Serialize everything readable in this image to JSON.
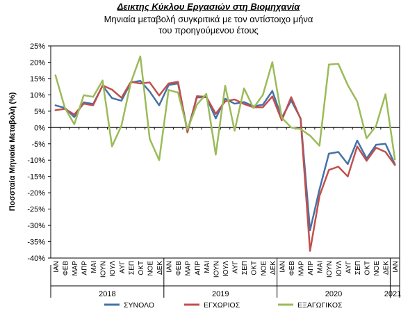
{
  "chart_data": {
    "type": "line",
    "title": "Δεικτης Κύκλου Εργασιών στη Βιομηχανία",
    "subtitle_line1": "Μηνιαία μεταβολή συγκριτικά με τον αντίστοιχο μήνα",
    "subtitle_line2": "του προηγούμενου έτους",
    "ylabel": "Ποσσταία Μηνιαία Μεταβολή (%)",
    "xlabel": "",
    "ylim": [
      -40,
      25
    ],
    "y_ticks": [
      "25%",
      "20%",
      "15%",
      "10%",
      "5%",
      "0%",
      "-5%",
      "-10%",
      "-15%",
      "-20%",
      "-25%",
      "-30%",
      "-35%",
      "-40%"
    ],
    "grid": false,
    "legend_position": "bottom",
    "x": [
      "ΙΑΝ",
      "ΦΕΒ",
      "ΜΑΡ",
      "ΑΠΡ",
      "ΜΑΙ",
      "ΙΟΥΝ",
      "ΙΟΥΛ",
      "ΑΥΓ",
      "ΣΕΠ",
      "ΟΚΤ",
      "ΝΟΕ",
      "ΔΕΚ",
      "ΙΑΝ",
      "ΦΕΒ",
      "ΜΑΡ",
      "ΑΠΡ",
      "ΜΑΙ",
      "ΙΟΥΝ",
      "ΙΟΥΛ",
      "ΑΥΓ",
      "ΣΕΠ",
      "ΟΚΤ",
      "ΝΟΕ",
      "ΔΕΚ",
      "ΙΑΝ",
      "ΦΕΒ",
      "ΜΑΡ",
      "ΑΠΡ",
      "ΜΑΙ",
      "ΙΟΥΝ",
      "ΙΟΥΛ",
      "ΑΥΓ",
      "ΣΕΠ",
      "ΟΚΤ",
      "ΝΟΕ",
      "ΔΕΚ",
      "ΙΑΝ"
    ],
    "year_groups": [
      {
        "label": "2018",
        "start": 0,
        "end": 11
      },
      {
        "label": "2019",
        "start": 12,
        "end": 23
      },
      {
        "label": "2020",
        "start": 24,
        "end": 35
      },
      {
        "label": "2021",
        "start": 36,
        "end": 36
      }
    ],
    "series": [
      {
        "name": "ΣΥΝΟΛΟ",
        "color": "#4472a8",
        "values": [
          6.8,
          6.0,
          3.2,
          7.7,
          7.2,
          12.8,
          9.0,
          8.2,
          13.8,
          14.3,
          11.0,
          6.8,
          13.0,
          13.5,
          -1.0,
          9.2,
          9.3,
          2.8,
          8.8,
          7.3,
          7.8,
          6.5,
          7.0,
          11.2,
          3.0,
          8.3,
          2.8,
          -31.5,
          -19.0,
          -8.0,
          -7.5,
          -11.2,
          -4.0,
          -9.5,
          -5.3,
          -5.0,
          -11.3
        ]
      },
      {
        "name": "ΕΓΧΩΡΙΟΣ",
        "color": "#c0504d",
        "values": [
          5.3,
          5.7,
          4.0,
          7.3,
          6.8,
          12.9,
          11.6,
          9.1,
          14.0,
          13.5,
          13.8,
          9.8,
          13.5,
          14.0,
          -1.5,
          9.6,
          9.4,
          4.2,
          8.0,
          8.6,
          7.2,
          6.2,
          6.2,
          9.5,
          2.2,
          9.3,
          2.6,
          -37.8,
          -21.0,
          -13.0,
          -12.0,
          -15.0,
          -5.8,
          -10.2,
          -6.2,
          -7.5,
          -11.5
        ]
      },
      {
        "name": "ΕΞΑΓΩΓΙΚΟΣ",
        "color": "#9bbb59",
        "values": [
          16.0,
          6.0,
          1.0,
          9.9,
          9.4,
          14.4,
          -5.8,
          0.6,
          13.8,
          21.8,
          -3.5,
          -10.0,
          11.5,
          10.7,
          -0.6,
          7.0,
          10.3,
          -8.3,
          12.8,
          -1.0,
          12.0,
          6.0,
          10.0,
          20.0,
          3.0,
          0.0,
          -0.5,
          -2.5,
          -5.6,
          19.3,
          19.5,
          13.0,
          8.0,
          -3.3,
          0.5,
          10.2,
          -9.8
        ]
      }
    ]
  }
}
